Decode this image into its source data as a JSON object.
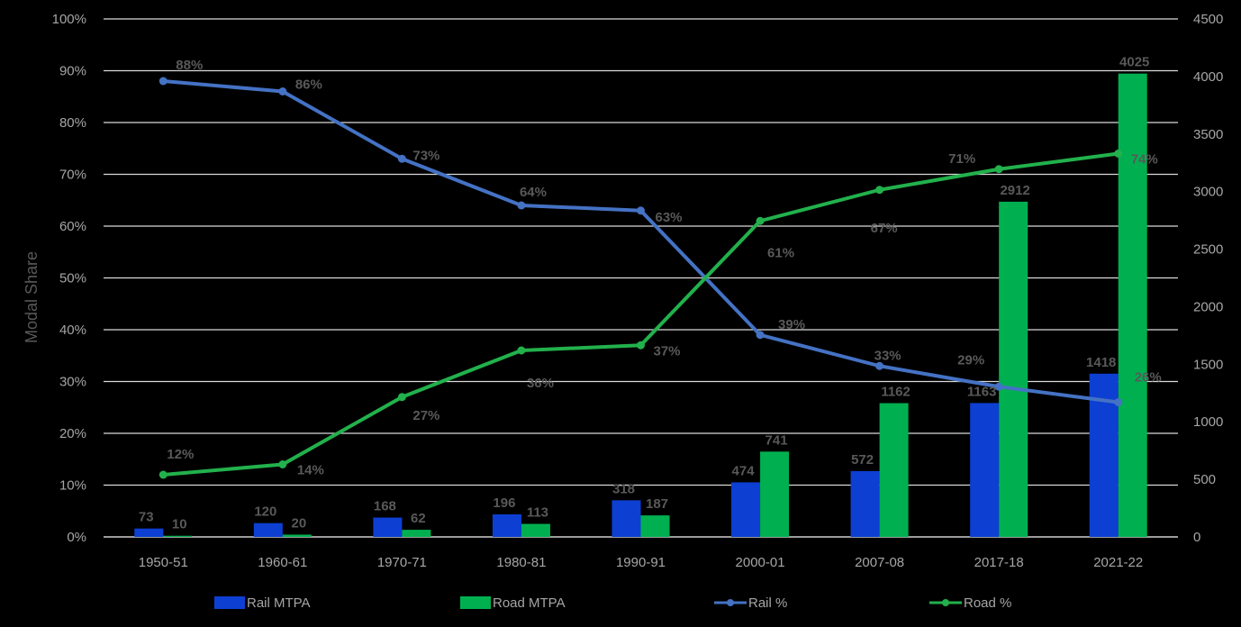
{
  "chart_data": {
    "type": "bar+line",
    "categories": [
      "1950-51",
      "1960-61",
      "1970-71",
      "1980-81",
      "1990-91",
      "2000-01",
      "2007-08",
      "2017-18",
      "2021-22"
    ],
    "series": [
      {
        "name": "Rail MTPA",
        "type": "bar",
        "axis": "right",
        "color": "#0d3fd3",
        "values": [
          73,
          120,
          168,
          196,
          318,
          474,
          572,
          1163,
          1418
        ],
        "labels": [
          "73",
          "120",
          "168",
          "196",
          "318",
          "474",
          "572",
          "1163",
          "1418"
        ]
      },
      {
        "name": "Road MTPA",
        "type": "bar",
        "axis": "right",
        "color": "#00b050",
        "values": [
          10,
          20,
          62,
          113,
          187,
          741,
          1162,
          2912,
          4025
        ],
        "labels": [
          "10",
          "20",
          "62",
          "113",
          "187",
          "741",
          "1162",
          "2912",
          "4025"
        ]
      },
      {
        "name": "Rail %",
        "type": "line",
        "axis": "left",
        "color": "#4472c4",
        "values": [
          88,
          86,
          73,
          64,
          63,
          39,
          33,
          29,
          26
        ],
        "labels": [
          "88%",
          "86%",
          "73%",
          "64%",
          "63%",
          "39%",
          "33%",
          "29%",
          "26%"
        ]
      },
      {
        "name": "Road %",
        "type": "line",
        "axis": "left",
        "color": "#22b14c",
        "values": [
          12,
          14,
          27,
          36,
          37,
          61,
          67,
          71,
          74
        ],
        "labels": [
          "12%",
          "14%",
          "27%",
          "36%",
          "37%",
          "61%",
          "67%",
          "71%",
          "74%"
        ]
      }
    ],
    "ylabel": "Modal Share",
    "ylim_left": [
      0,
      100
    ],
    "ylim_right": [
      0,
      4500
    ],
    "left_ticks": [
      "0%",
      "10%",
      "20%",
      "30%",
      "40%",
      "50%",
      "60%",
      "70%",
      "80%",
      "90%",
      "100%"
    ],
    "right_ticks": [
      "0",
      "500",
      "1000",
      "1500",
      "2000",
      "2500",
      "3000",
      "3500",
      "4000",
      "4500"
    ],
    "legend_position": "bottom",
    "grid": true
  }
}
